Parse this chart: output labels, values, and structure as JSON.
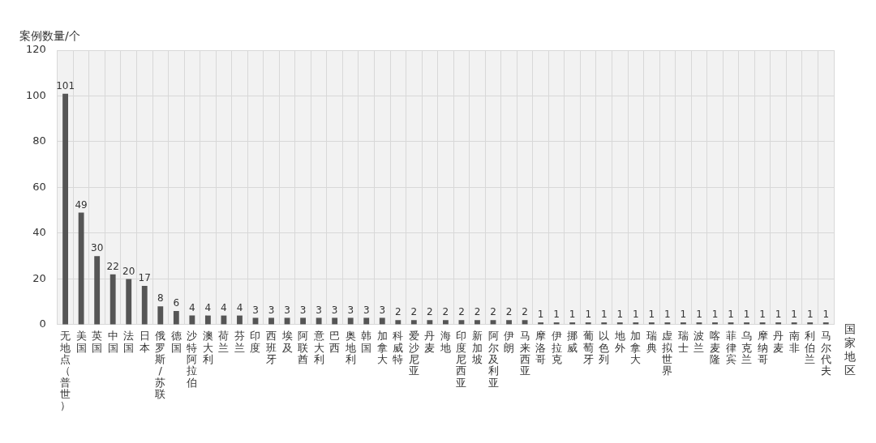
{
  "chart_data": {
    "type": "bar",
    "ylabel": "案例数量/个",
    "xlabel": "国家地区",
    "categories": [
      "无地点（普世）",
      "美国",
      "英国",
      "中国",
      "法国",
      "日本",
      "俄罗斯/苏联",
      "德国",
      "沙特阿拉伯",
      "澳大利",
      "荷兰",
      "芬兰",
      "印度",
      "西班牙",
      "埃及",
      "阿联酋",
      "意大利",
      "巴西",
      "奥地利",
      "韩国",
      "加拿大",
      "科威特",
      "爱沙尼亚",
      "丹麦",
      "海地",
      "印度尼西亚",
      "新加坡",
      "阿尔及利亚",
      "伊朗",
      "马来西亚",
      "摩洛哥",
      "伊拉克",
      "挪威",
      "葡萄牙",
      "以色列",
      "地外",
      "加拿大",
      "瑞典",
      "虚拟世界",
      "瑞士",
      "波兰",
      "喀麦隆",
      "菲律宾",
      "乌克兰",
      "摩纳哥",
      "丹麦",
      "南非",
      "利伯兰",
      "马尔代夫"
    ],
    "values": [
      101,
      49,
      30,
      22,
      20,
      17,
      8,
      6,
      4,
      4,
      4,
      4,
      3,
      3,
      3,
      3,
      3,
      3,
      3,
      3,
      3,
      2,
      2,
      2,
      2,
      2,
      2,
      2,
      2,
      2,
      1,
      1,
      1,
      1,
      1,
      1,
      1,
      1,
      1,
      1,
      1,
      1,
      1,
      1,
      1,
      1,
      1,
      1,
      1
    ],
    "color": "#555555",
    "ylim": [
      0,
      120
    ],
    "yticks": [
      0,
      20,
      40,
      60,
      80,
      100,
      120
    ],
    "grid": true,
    "data_labels": true,
    "legend": false
  }
}
